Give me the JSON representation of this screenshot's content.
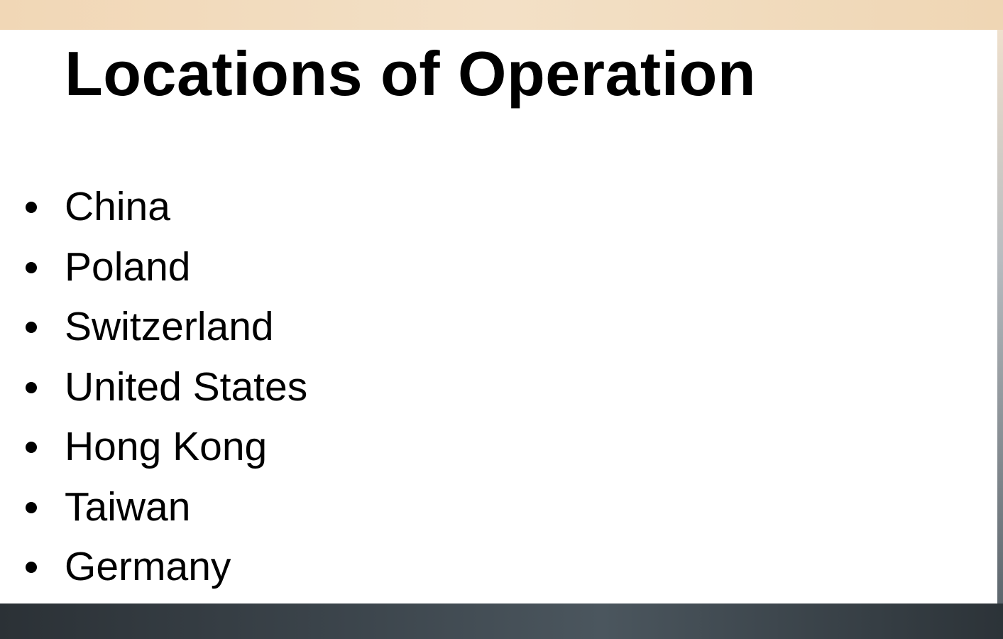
{
  "document": {
    "title": "Locations of Operation",
    "locations": [
      "China",
      "Poland",
      "Switzerland",
      "United States",
      "Hong Kong",
      "Taiwan",
      "Germany"
    ]
  },
  "colors": {
    "text": "#000000",
    "page_background": "#ffffff"
  }
}
